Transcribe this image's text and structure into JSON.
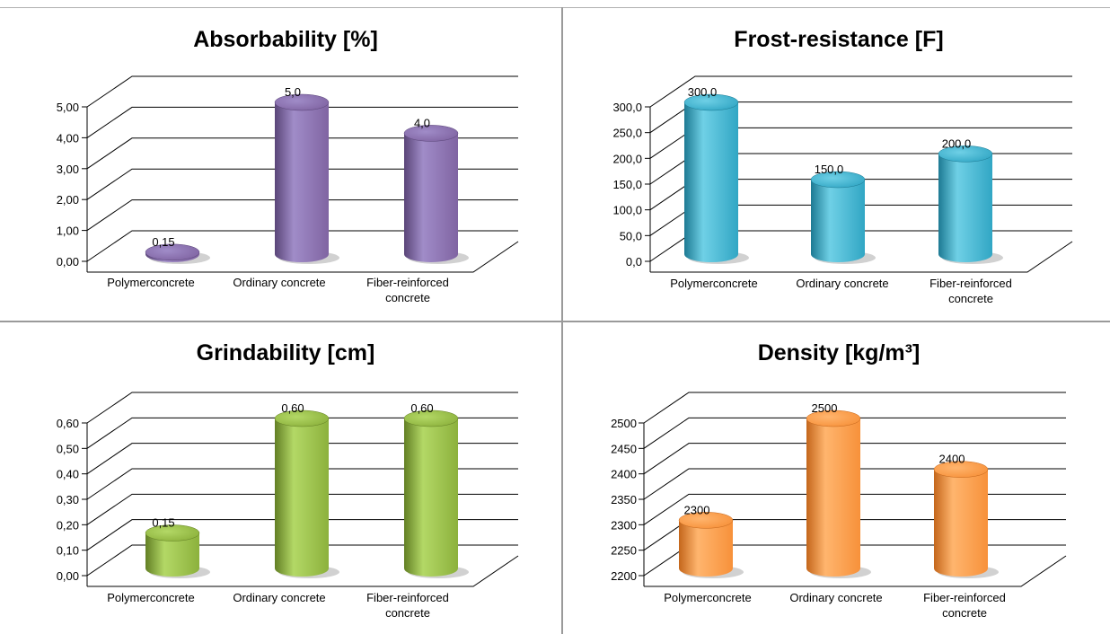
{
  "chart_data": [
    {
      "type": "bar",
      "title": "Absorbability [%]",
      "categories": [
        "Polymerconcrete",
        "Ordinary concrete",
        "Fiber-reinforced concrete"
      ],
      "category_lines": [
        [
          "Polymerconcrete"
        ],
        [
          "Ordinary concrete"
        ],
        [
          "Fiber-reinforced",
          "concrete"
        ]
      ],
      "values": [
        0.15,
        5.0,
        4.0
      ],
      "value_labels": [
        "0,15",
        "5,0",
        "4,0"
      ],
      "ylim": [
        0,
        5
      ],
      "yticks": [
        0,
        1,
        2,
        3,
        4,
        5
      ],
      "ytick_labels": [
        "0,00",
        "1,00",
        "2,00",
        "3,00",
        "4,00",
        "5,00"
      ],
      "grid": true,
      "color": "#8064a2",
      "color_light": "#a08cc8",
      "color_dark": "#5a4578"
    },
    {
      "type": "bar",
      "title": "Frost-resistance  [F]",
      "categories": [
        "Polymerconcrete",
        "Ordinary concrete",
        "Fiber-reinforced concrete"
      ],
      "category_lines": [
        [
          "Polymerconcrete"
        ],
        [
          "Ordinary concrete"
        ],
        [
          "Fiber-reinforced",
          "concrete"
        ]
      ],
      "values": [
        300.0,
        150.0,
        200.0
      ],
      "value_labels": [
        "300,0",
        "150,0",
        "200,0"
      ],
      "ylim": [
        0,
        300
      ],
      "yticks": [
        0,
        50,
        100,
        150,
        200,
        250,
        300
      ],
      "ytick_labels": [
        "0,0",
        "50,0",
        "100,0",
        "150,0",
        "200,0",
        "250,0",
        "300,0"
      ],
      "grid": true,
      "color": "#31a6c4",
      "color_light": "#6fd0e6",
      "color_dark": "#1d7a93"
    },
    {
      "type": "bar",
      "title": "Grindability [cm]",
      "categories": [
        "Polymerconcrete",
        "Ordinary concrete",
        "Fiber-reinforced concrete"
      ],
      "category_lines": [
        [
          "Polymerconcrete"
        ],
        [
          "Ordinary concrete"
        ],
        [
          "Fiber-reinforced",
          "concrete"
        ]
      ],
      "values": [
        0.15,
        0.6,
        0.6
      ],
      "value_labels": [
        "0,15",
        "0,60",
        "0,60"
      ],
      "ylim": [
        0,
        0.6
      ],
      "yticks": [
        0,
        0.1,
        0.2,
        0.3,
        0.4,
        0.5,
        0.6
      ],
      "ytick_labels": [
        "0,00",
        "0,10",
        "0,20",
        "0,30",
        "0,40",
        "0,50",
        "0,60"
      ],
      "grid": true,
      "color": "#8cb13c",
      "color_light": "#b3d866",
      "color_dark": "#627f24"
    },
    {
      "type": "bar",
      "title": "Density [kg/m³]",
      "categories": [
        "Polymerconcrete",
        "Ordinary concrete",
        "Fiber-reinforced concrete"
      ],
      "category_lines": [
        [
          "Polymerconcrete"
        ],
        [
          "Ordinary concrete"
        ],
        [
          "Fiber-reinforced",
          "concrete"
        ]
      ],
      "values": [
        2300,
        2500,
        2400
      ],
      "value_labels": [
        "2300",
        "2500",
        "2400"
      ],
      "ylim": [
        2200,
        2500
      ],
      "yticks": [
        2200,
        2250,
        2300,
        2350,
        2400,
        2450,
        2500
      ],
      "ytick_labels": [
        "2200",
        "2250",
        "2300",
        "2350",
        "2400",
        "2450",
        "2500"
      ],
      "grid": true,
      "color": "#f7913a",
      "color_light": "#ffb56e",
      "color_dark": "#c4661b"
    }
  ]
}
